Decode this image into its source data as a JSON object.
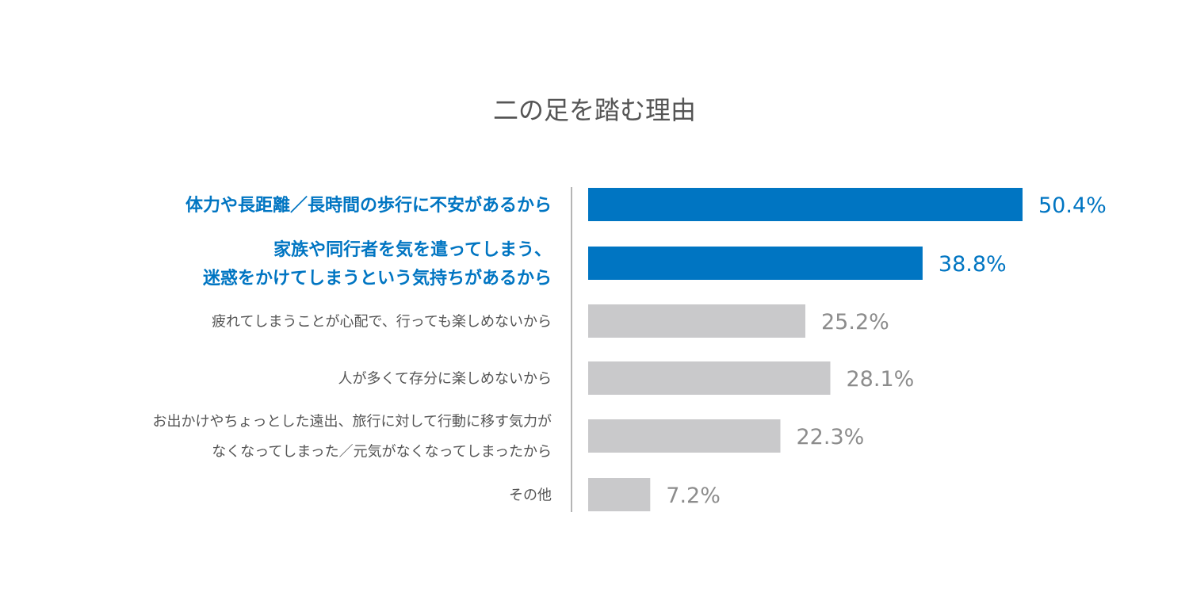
{
  "chart_data": {
    "type": "bar",
    "orientation": "horizontal",
    "title": "二の足を踏む理由",
    "categories": [
      [
        "体力や長距離／長時間の歩行に不安があるから"
      ],
      [
        "家族や同行者を気を遣ってしまう、",
        "迷惑をかけてしまうという気持ちがあるから"
      ],
      [
        "疲れてしまうことが心配で、行っても楽しめないから"
      ],
      [
        "人が多くて存分に楽しめないから"
      ],
      [
        "お出かけやちょっとした遠出、旅行に対して行動に移す気力が",
        "なくなってしまった／元気がなくなってしまったから"
      ],
      [
        "その他"
      ]
    ],
    "values": [
      50.4,
      38.8,
      25.2,
      28.1,
      22.3,
      7.2
    ],
    "value_labels": [
      "50.4%",
      "38.8%",
      "25.2%",
      "28.1%",
      "22.3%",
      "7.2%"
    ],
    "highlighted": [
      true,
      true,
      false,
      false,
      false,
      false
    ],
    "xlim": [
      0,
      50.4
    ],
    "xlabel": "",
    "ylabel": "",
    "grid": false,
    "legend": "none"
  },
  "colors": {
    "title": "#555555",
    "highlight": "#0075c2",
    "normal_bar": "#c9c9cb",
    "normal_label": "#555555",
    "normal_value": "#8c8c8c",
    "axis": "#b5b5b5"
  }
}
